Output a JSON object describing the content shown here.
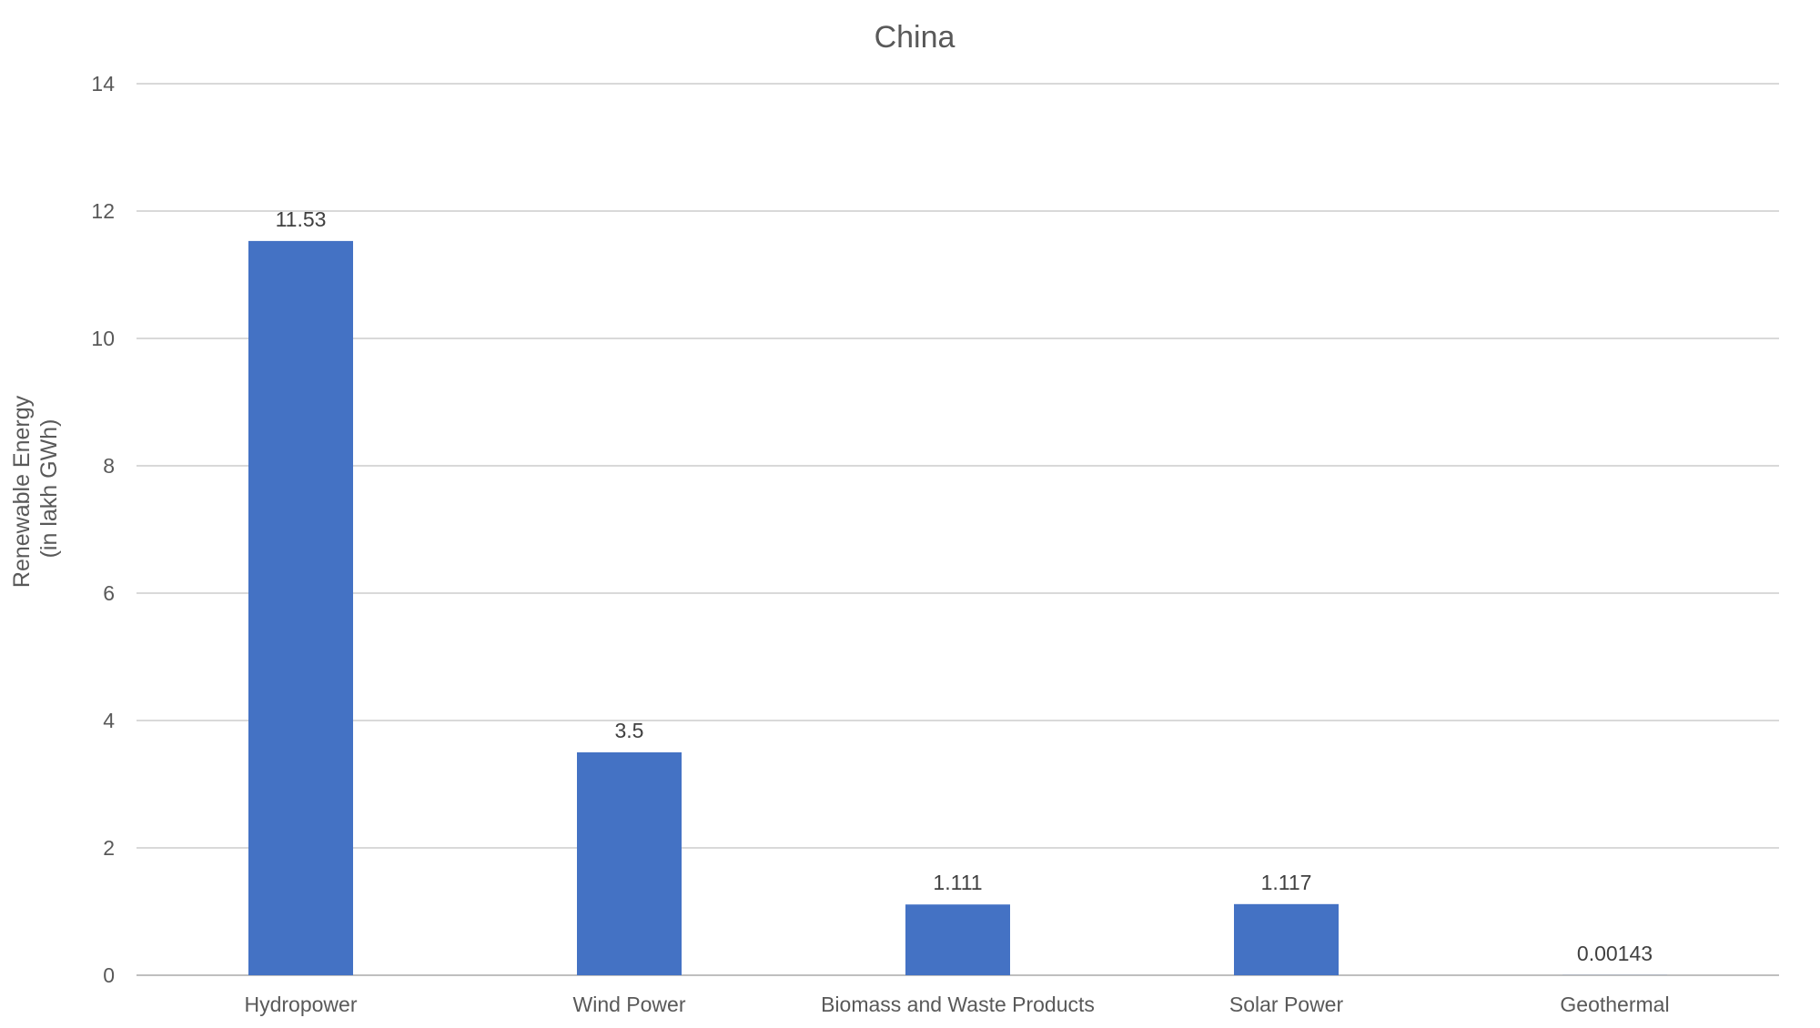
{
  "chart_data": {
    "type": "bar",
    "title": "China",
    "xlabel": "",
    "ylabel_lines": [
      "Renewable Energy",
      "(in lakh GWh)"
    ],
    "categories": [
      "Hydropower",
      "Wind Power",
      "Biomass and Waste Products",
      "Solar Power",
      "Geothermal"
    ],
    "values": [
      11.53,
      3.5,
      1.111,
      1.117,
      0.00143
    ],
    "value_labels": [
      "11.53",
      "3.5",
      "1.111",
      "1.117",
      "0.00143"
    ],
    "ylim": [
      0,
      14
    ],
    "yticks": [
      0,
      2,
      4,
      6,
      8,
      10,
      12,
      14
    ],
    "grid": true,
    "bar_color": "#4472C4",
    "grid_color": "#D9D9D9",
    "axis_color": "#BFBFBF",
    "text_color": "#595959",
    "label_color": "#404040"
  }
}
